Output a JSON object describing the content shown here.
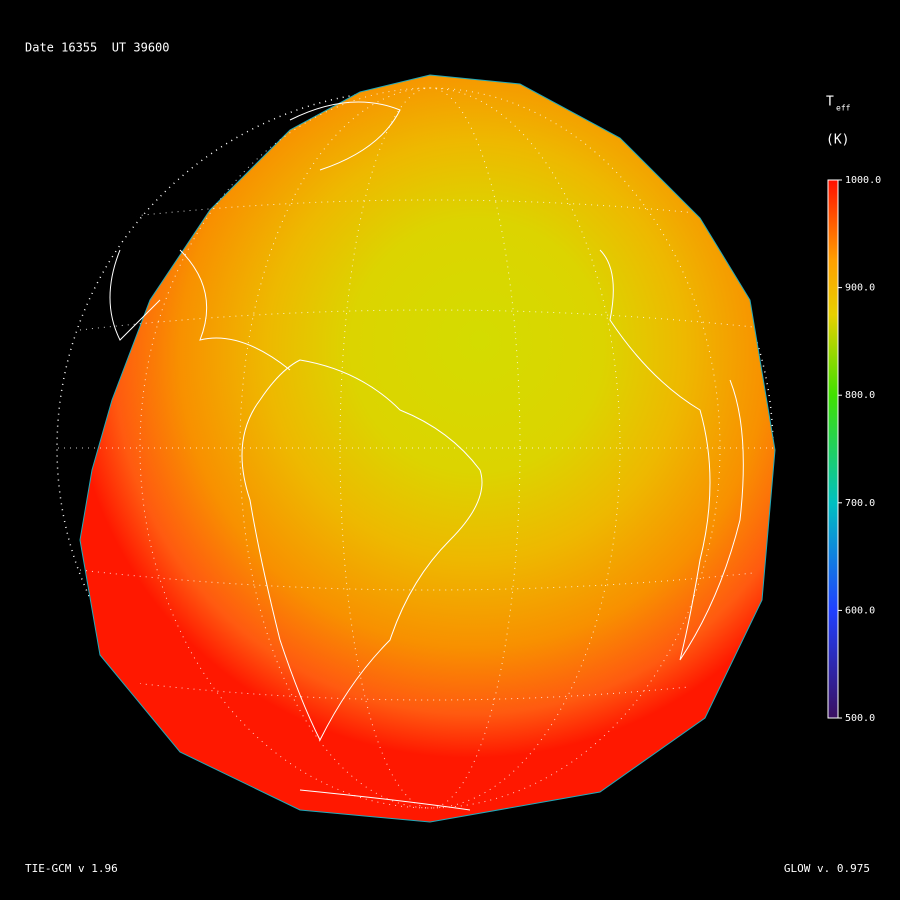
{
  "header": {
    "date_label": "Date 16355  UT 39600"
  },
  "colorbar": {
    "title": "T",
    "title_sub": "eff",
    "unit": "(K)",
    "lim": [
      500,
      1000
    ],
    "ticks": [
      {
        "value": 1000,
        "label": "1000.0"
      },
      {
        "value": 900,
        "label": "900.0"
      },
      {
        "value": 800,
        "label": "800.0"
      },
      {
        "value": 700,
        "label": "700.0"
      },
      {
        "value": 600,
        "label": "600.0"
      },
      {
        "value": 500,
        "label": "500.0"
      }
    ]
  },
  "footer": {
    "left": "TIE-GCM v 1.96",
    "right": "GLOW v. 0.975"
  }
}
